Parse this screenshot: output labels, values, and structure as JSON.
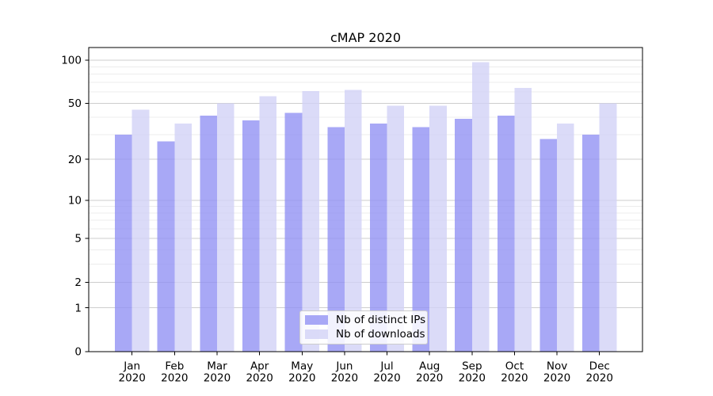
{
  "chart_data": {
    "type": "bar",
    "title": "cMAP 2020",
    "categories": [
      {
        "month": "Jan",
        "year": "2020"
      },
      {
        "month": "Feb",
        "year": "2020"
      },
      {
        "month": "Mar",
        "year": "2020"
      },
      {
        "month": "Apr",
        "year": "2020"
      },
      {
        "month": "May",
        "year": "2020"
      },
      {
        "month": "Jun",
        "year": "2020"
      },
      {
        "month": "Jul",
        "year": "2020"
      },
      {
        "month": "Aug",
        "year": "2020"
      },
      {
        "month": "Sep",
        "year": "2020"
      },
      {
        "month": "Oct",
        "year": "2020"
      },
      {
        "month": "Nov",
        "year": "2020"
      },
      {
        "month": "Dec",
        "year": "2020"
      }
    ],
    "series": [
      {
        "name": "Nb of distinct IPs",
        "color": "#9292f4",
        "values": [
          30,
          27,
          41,
          38,
          43,
          34,
          36,
          34,
          39,
          41,
          28,
          30
        ]
      },
      {
        "name": "Nb of downloads",
        "color": "#d2d2f6",
        "values": [
          45,
          36,
          50,
          56,
          61,
          62,
          48,
          48,
          97,
          64,
          36,
          50
        ]
      }
    ],
    "bar_opacity": 0.8,
    "yscale": "log1p",
    "yticks": [
      0,
      1,
      2,
      5,
      10,
      20,
      50,
      100
    ],
    "yminor_gridlines": [
      3,
      4,
      6,
      7,
      8,
      9,
      30,
      40,
      60,
      70,
      80,
      90
    ],
    "ylim": [
      0,
      123
    ],
    "grid": "horizontal",
    "legend_position": "lower center",
    "colors": {
      "major_grid": "#cdcdcd",
      "minor_grid": "#ececec",
      "spine": "#000000",
      "text": "#000000"
    }
  }
}
